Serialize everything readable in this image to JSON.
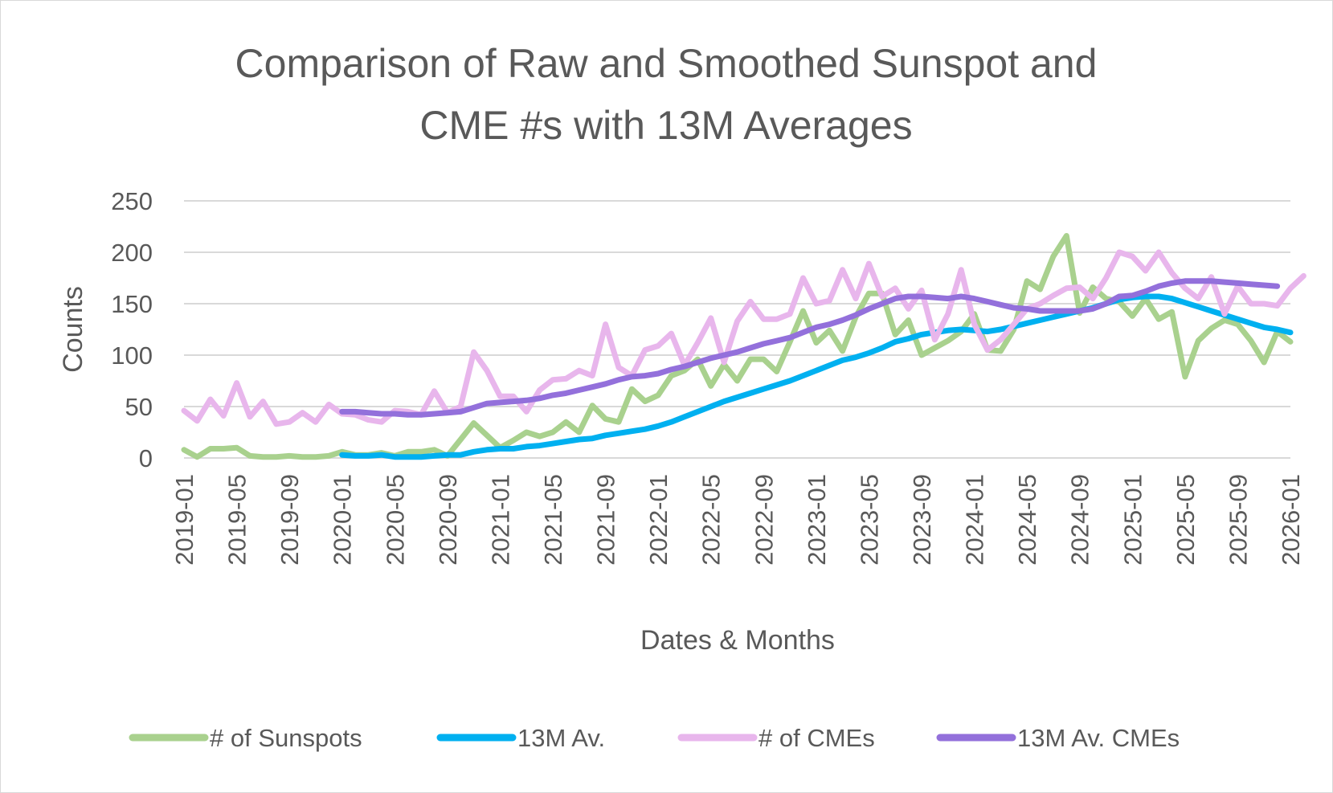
{
  "chart_data": {
    "type": "line",
    "title": "Comparison of Raw and Smoothed Sunspot and CME #s with 13M Averages",
    "title_lines": [
      "Comparison of Raw and Smoothed Sunspot and",
      "CME #s with 13M Averages"
    ],
    "xlabel": "Dates & Months",
    "ylabel": "Counts",
    "ylim": [
      0,
      250
    ],
    "y_ticks": [
      0,
      50,
      100,
      150,
      200,
      250
    ],
    "grid": true,
    "legend_position": "bottom",
    "x_ticks": [
      "2019-01",
      "2019-05",
      "2019-09",
      "2020-01",
      "2020-05",
      "2020-09",
      "2021-01",
      "2021-05",
      "2021-09",
      "2022-01",
      "2022-05",
      "2022-09",
      "2023-01",
      "2023-05",
      "2023-09",
      "2024-01",
      "2024-05",
      "2024-09",
      "2025-01",
      "2025-05",
      "2025-09",
      "2026-01"
    ],
    "x_start": "2019-01",
    "series": [
      {
        "name": "# of Sunspots",
        "color": "#a9d18e",
        "start": "2019-01",
        "values": [
          8,
          1,
          9,
          9,
          10,
          2,
          1,
          1,
          2,
          1,
          1,
          2,
          6,
          3,
          3,
          5,
          2,
          6,
          6,
          8,
          2,
          18,
          34,
          22,
          10,
          17,
          25,
          21,
          25,
          35,
          25,
          51,
          38,
          35,
          67,
          55,
          61,
          80,
          85,
          96,
          70,
          91,
          75,
          96,
          96,
          84,
          113,
          143,
          112,
          124,
          104,
          137,
          160,
          160,
          120,
          134,
          100,
          107,
          114,
          123,
          140,
          105,
          104,
          125,
          172,
          164,
          196,
          216,
          141,
          166,
          155,
          152,
          138,
          155,
          135,
          142,
          79,
          114,
          126,
          134,
          130,
          114,
          93,
          123,
          113
        ]
      },
      {
        "name": "13M Av.",
        "color": "#00b0f0",
        "start": "2020-01",
        "values": [
          3,
          2,
          2,
          3,
          1,
          1,
          1,
          2,
          3,
          3,
          6,
          8,
          9,
          9,
          11,
          12,
          14,
          16,
          18,
          19,
          22,
          24,
          26,
          28,
          31,
          35,
          40,
          45,
          50,
          55,
          59,
          63,
          67,
          71,
          75,
          80,
          85,
          90,
          95,
          98,
          102,
          107,
          113,
          116,
          120,
          122,
          124,
          125,
          124,
          123,
          125,
          128,
          131,
          134,
          137,
          140,
          143,
          146,
          150,
          154,
          156,
          157,
          157,
          155,
          151,
          147,
          143,
          139,
          135,
          131,
          127,
          125,
          122
        ]
      },
      {
        "name": "# of CMEs",
        "color": "#e8b6ec",
        "start": "2019-01",
        "values": [
          46,
          36,
          57,
          41,
          73,
          40,
          55,
          33,
          35,
          44,
          35,
          52,
          43,
          42,
          37,
          35,
          46,
          45,
          42,
          65,
          44,
          50,
          103,
          85,
          60,
          60,
          45,
          66,
          76,
          77,
          85,
          80,
          130,
          88,
          80,
          105,
          109,
          121,
          90,
          112,
          136,
          93,
          133,
          152,
          135,
          135,
          140,
          175,
          150,
          153,
          183,
          155,
          189,
          157,
          165,
          145,
          163,
          115,
          140,
          183,
          130,
          105,
          115,
          130,
          145,
          150,
          158,
          165,
          166,
          155,
          175,
          200,
          196,
          182,
          200,
          180,
          165,
          155,
          176,
          140,
          167,
          150,
          150,
          148,
          165,
          177
        ]
      },
      {
        "name": "13M Av. CMEs",
        "color": "#9370db",
        "start": "2020-01",
        "values": [
          45,
          45,
          44,
          43,
          43,
          42,
          42,
          43,
          44,
          45,
          49,
          53,
          54,
          55,
          56,
          58,
          61,
          63,
          66,
          69,
          72,
          76,
          79,
          80,
          82,
          86,
          89,
          93,
          97,
          100,
          103,
          107,
          111,
          114,
          117,
          122,
          127,
          130,
          134,
          139,
          145,
          150,
          155,
          157,
          157,
          156,
          155,
          157,
          155,
          152,
          149,
          146,
          145,
          143,
          143,
          143,
          143,
          145,
          150,
          157,
          158,
          162,
          167,
          170,
          172,
          172,
          172,
          171,
          170,
          169,
          168,
          167
        ]
      }
    ]
  }
}
